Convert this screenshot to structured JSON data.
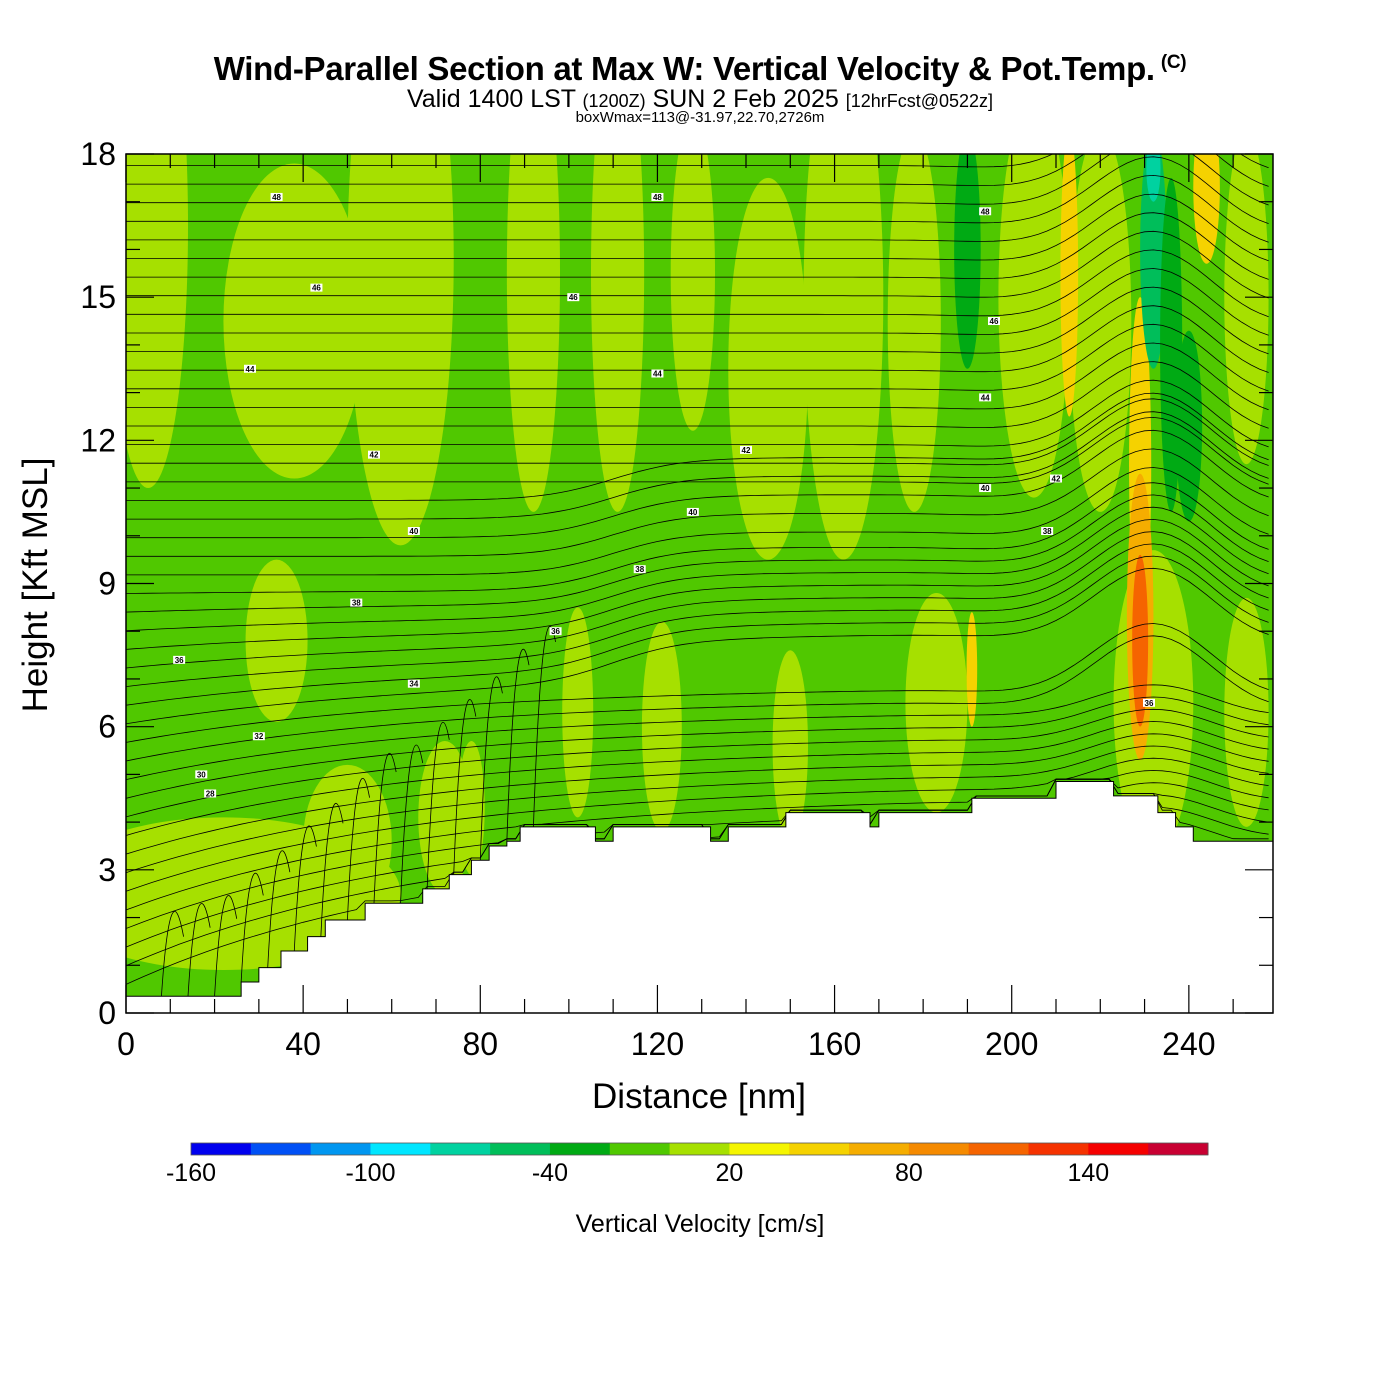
{
  "header": {
    "title": "Wind-Parallel Section at Max W: Vertical Velocity & Pot.Temp.",
    "copyright": "(C)",
    "valid_prefix": "Valid 1400 LST",
    "valid_utc": "(1200Z)",
    "valid_date": "SUN 2 Feb 2025",
    "forecast": "[12hrFcst@0522z]",
    "box_info": "boxWmax=113@-31.97,22.70,2726m"
  },
  "chart_data": {
    "type": "heatmap",
    "xlabel": "Distance [nm]",
    "ylabel": "Height [Kft MSL]",
    "xlim": [
      0,
      259
    ],
    "ylim": [
      0,
      18
    ],
    "x_ticks": [
      0,
      40,
      80,
      120,
      160,
      200,
      240
    ],
    "y_ticks": [
      0,
      3,
      6,
      9,
      12,
      15,
      18
    ],
    "terrain_kft": [
      [
        0,
        0.35
      ],
      [
        26,
        0.35
      ],
      [
        26,
        0.65
      ],
      [
        30,
        0.65
      ],
      [
        30,
        0.95
      ],
      [
        35,
        0.95
      ],
      [
        35,
        1.3
      ],
      [
        41,
        1.3
      ],
      [
        41,
        1.6
      ],
      [
        45,
        1.6
      ],
      [
        45,
        1.95
      ],
      [
        54,
        1.95
      ],
      [
        54,
        2.3
      ],
      [
        67,
        2.3
      ],
      [
        67,
        2.6
      ],
      [
        73,
        2.6
      ],
      [
        73,
        2.9
      ],
      [
        78,
        2.9
      ],
      [
        78,
        3.2
      ],
      [
        82,
        3.2
      ],
      [
        82,
        3.5
      ],
      [
        86,
        3.5
      ],
      [
        86,
        3.6
      ],
      [
        89,
        3.6
      ],
      [
        89,
        3.9
      ],
      [
        106,
        3.9
      ],
      [
        106,
        3.6
      ],
      [
        110,
        3.6
      ],
      [
        110,
        3.9
      ],
      [
        132,
        3.9
      ],
      [
        132,
        3.6
      ],
      [
        136,
        3.6
      ],
      [
        136,
        3.9
      ],
      [
        149,
        3.9
      ],
      [
        149,
        4.2
      ],
      [
        168,
        4.2
      ],
      [
        168,
        3.9
      ],
      [
        170,
        3.9
      ],
      [
        170,
        4.2
      ],
      [
        191,
        4.2
      ],
      [
        191,
        4.5
      ],
      [
        210,
        4.5
      ],
      [
        210,
        4.85
      ],
      [
        223,
        4.85
      ],
      [
        223,
        4.55
      ],
      [
        233,
        4.55
      ],
      [
        233,
        4.2
      ],
      [
        237,
        4.2
      ],
      [
        237,
        3.9
      ],
      [
        241,
        3.9
      ],
      [
        241,
        3.6
      ],
      [
        259,
        3.6
      ]
    ],
    "colorbar": {
      "title": "Vertical Velocity [cm/s]",
      "min": -160,
      "max": 180,
      "step": 20,
      "tick_labels": [
        -160,
        -100,
        -40,
        20,
        80,
        140
      ],
      "colors": [
        "#0000ee",
        "#0050f5",
        "#0096f0",
        "#00e6ff",
        "#00d2a0",
        "#00be5a",
        "#00aa14",
        "#50c800",
        "#a6e000",
        "#f5f500",
        "#f5d200",
        "#f5ad00",
        "#f58a00",
        "#f56400",
        "#f53200",
        "#f50000",
        "#c80032"
      ]
    },
    "field_description_blobs": [
      {
        "x": 5,
        "y": 16.5,
        "rx": 9,
        "ry": 5.5,
        "w": 10
      },
      {
        "x": 38,
        "y": 14.5,
        "rx": 16,
        "ry": 3.3,
        "w": 10
      },
      {
        "x": 62,
        "y": 15.8,
        "rx": 12,
        "ry": 6,
        "w": 10
      },
      {
        "x": 34,
        "y": 7.8,
        "rx": 7,
        "ry": 1.7,
        "w": 10
      },
      {
        "x": 92,
        "y": 15.5,
        "rx": 6,
        "ry": 5,
        "w": 10
      },
      {
        "x": 111,
        "y": 15.5,
        "rx": 6,
        "ry": 5,
        "w": 10
      },
      {
        "x": 128,
        "y": 15.5,
        "rx": 5,
        "ry": 3.3,
        "w": 10
      },
      {
        "x": 145,
        "y": 13.5,
        "rx": 9,
        "ry": 4,
        "w": 10
      },
      {
        "x": 162,
        "y": 15.0,
        "rx": 9,
        "ry": 5.5,
        "w": 10
      },
      {
        "x": 178,
        "y": 14.5,
        "rx": 6,
        "ry": 4,
        "w": 10
      },
      {
        "x": 205,
        "y": 15.0,
        "rx": 8,
        "ry": 4.2,
        "w": 10
      },
      {
        "x": 220,
        "y": 14.5,
        "rx": 7,
        "ry": 4,
        "w": 10
      },
      {
        "x": 253,
        "y": 15.0,
        "rx": 5,
        "ry": 3.5,
        "w": 10
      },
      {
        "x": 22,
        "y": 2.5,
        "rx": 40,
        "ry": 1.6,
        "w": 10
      },
      {
        "x": 50,
        "y": 3.6,
        "rx": 10,
        "ry": 1.6,
        "w": 10
      },
      {
        "x": 72,
        "y": 4.1,
        "rx": 6,
        "ry": 1.6,
        "w": 10
      },
      {
        "x": 78,
        "y": 4.3,
        "rx": 3,
        "ry": 1.4,
        "w": 10
      },
      {
        "x": 102,
        "y": 6.3,
        "rx": 3.5,
        "ry": 2.2,
        "w": 10
      },
      {
        "x": 121,
        "y": 6.0,
        "rx": 4.5,
        "ry": 2.2,
        "w": 10
      },
      {
        "x": 150,
        "y": 5.6,
        "rx": 4,
        "ry": 2.0,
        "w": 10
      },
      {
        "x": 183,
        "y": 6.5,
        "rx": 7,
        "ry": 2.3,
        "w": 10
      },
      {
        "x": 232,
        "y": 6.5,
        "rx": 9,
        "ry": 3.2,
        "w": 10
      },
      {
        "x": 253,
        "y": 6.3,
        "rx": 5,
        "ry": 2.4,
        "w": 10
      },
      {
        "x": 191,
        "y": 7.2,
        "rx": 1.2,
        "ry": 1.2,
        "w": 40
      },
      {
        "x": 213,
        "y": 15.5,
        "rx": 2.0,
        "ry": 3.0,
        "w": 40
      },
      {
        "x": 229,
        "y": 11.5,
        "rx": 2.5,
        "ry": 3.5,
        "w": 40
      },
      {
        "x": 244,
        "y": 17.3,
        "rx": 3,
        "ry": 1.6,
        "w": 40
      },
      {
        "x": 229,
        "y": 8.3,
        "rx": 3,
        "ry": 3.0,
        "w": 70
      },
      {
        "x": 229,
        "y": 7.8,
        "rx": 1.8,
        "ry": 1.8,
        "w": 100
      },
      {
        "x": 232,
        "y": 16.0,
        "rx": 3,
        "ry": 2.5,
        "w": -50
      },
      {
        "x": 236,
        "y": 14.0,
        "rx": 2.5,
        "ry": 3.5,
        "w": -40
      },
      {
        "x": 240,
        "y": 12.3,
        "rx": 3,
        "ry": 2.0,
        "w": -40
      },
      {
        "x": 232,
        "y": 17.7,
        "rx": 1.6,
        "ry": 0.7,
        "w": -70
      },
      {
        "x": 190,
        "y": 16.0,
        "rx": 3,
        "ry": 2.5,
        "w": -40
      }
    ],
    "isentrope_labels": [
      {
        "x": 34,
        "y": 17.1,
        "text": "48"
      },
      {
        "x": 120,
        "y": 17.1,
        "text": "48"
      },
      {
        "x": 194,
        "y": 16.8,
        "text": "48"
      },
      {
        "x": 43,
        "y": 15.2,
        "text": "46"
      },
      {
        "x": 101,
        "y": 15.0,
        "text": "46"
      },
      {
        "x": 196,
        "y": 14.5,
        "text": "46"
      },
      {
        "x": 28,
        "y": 13.5,
        "text": "44"
      },
      {
        "x": 120,
        "y": 13.4,
        "text": "44"
      },
      {
        "x": 194,
        "y": 12.9,
        "text": "44"
      },
      {
        "x": 56,
        "y": 11.7,
        "text": "42"
      },
      {
        "x": 140,
        "y": 11.8,
        "text": "42"
      },
      {
        "x": 210,
        "y": 11.2,
        "text": "42"
      },
      {
        "x": 128,
        "y": 10.5,
        "text": "40"
      },
      {
        "x": 194,
        "y": 11.0,
        "text": "40"
      },
      {
        "x": 65,
        "y": 10.1,
        "text": "40"
      },
      {
        "x": 116,
        "y": 9.3,
        "text": "38"
      },
      {
        "x": 208,
        "y": 10.1,
        "text": "38"
      },
      {
        "x": 52,
        "y": 8.6,
        "text": "38"
      },
      {
        "x": 12,
        "y": 7.4,
        "text": "36"
      },
      {
        "x": 97,
        "y": 8.0,
        "text": "36"
      },
      {
        "x": 231,
        "y": 6.5,
        "text": "36"
      },
      {
        "x": 65,
        "y": 6.9,
        "text": "34"
      },
      {
        "x": 30,
        "y": 5.8,
        "text": "32"
      },
      {
        "x": 17,
        "y": 5.0,
        "text": "30"
      },
      {
        "x": 19,
        "y": 4.6,
        "text": "28"
      }
    ]
  }
}
